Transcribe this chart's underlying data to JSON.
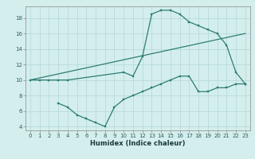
{
  "line1_x": [
    0,
    1,
    2,
    3,
    4,
    10,
    11,
    12,
    13,
    14,
    15,
    16,
    17,
    18,
    19,
    20,
    21,
    22,
    23
  ],
  "line1_y": [
    10,
    10,
    10,
    10,
    10,
    11,
    10.5,
    13,
    18.5,
    19,
    19,
    18.5,
    17.5,
    17,
    16.5,
    16,
    14.5,
    11,
    9.5
  ],
  "line2_x": [
    3,
    4,
    5,
    6,
    7,
    8,
    9,
    10,
    11,
    12,
    13,
    14,
    15,
    16,
    17,
    18,
    19,
    20,
    21,
    22,
    23
  ],
  "line2_y": [
    7,
    6.5,
    5.5,
    5.0,
    4.5,
    4.0,
    6.5,
    7.5,
    8.0,
    8.5,
    9.0,
    9.5,
    10.0,
    10.5,
    10.5,
    8.5,
    8.5,
    9.0,
    9.0,
    9.5,
    9.5
  ],
  "line3_x": [
    0,
    23
  ],
  "line3_y": [
    10,
    16
  ],
  "line_color": "#2d7d72",
  "bg_color": "#d4eeed",
  "grid_color": "#afd8d4",
  "xlabel": "Humidex (Indice chaleur)",
  "xlim": [
    -0.5,
    23.5
  ],
  "ylim": [
    3.5,
    19.5
  ],
  "yticks": [
    4,
    6,
    8,
    10,
    12,
    14,
    16,
    18
  ],
  "xticks": [
    0,
    1,
    2,
    3,
    4,
    5,
    6,
    7,
    8,
    9,
    10,
    11,
    12,
    13,
    14,
    15,
    16,
    17,
    18,
    19,
    20,
    21,
    22,
    23
  ],
  "marker_size": 2.0,
  "lw": 0.9,
  "xlabel_fontsize": 6.0,
  "tick_fontsize": 5.0
}
